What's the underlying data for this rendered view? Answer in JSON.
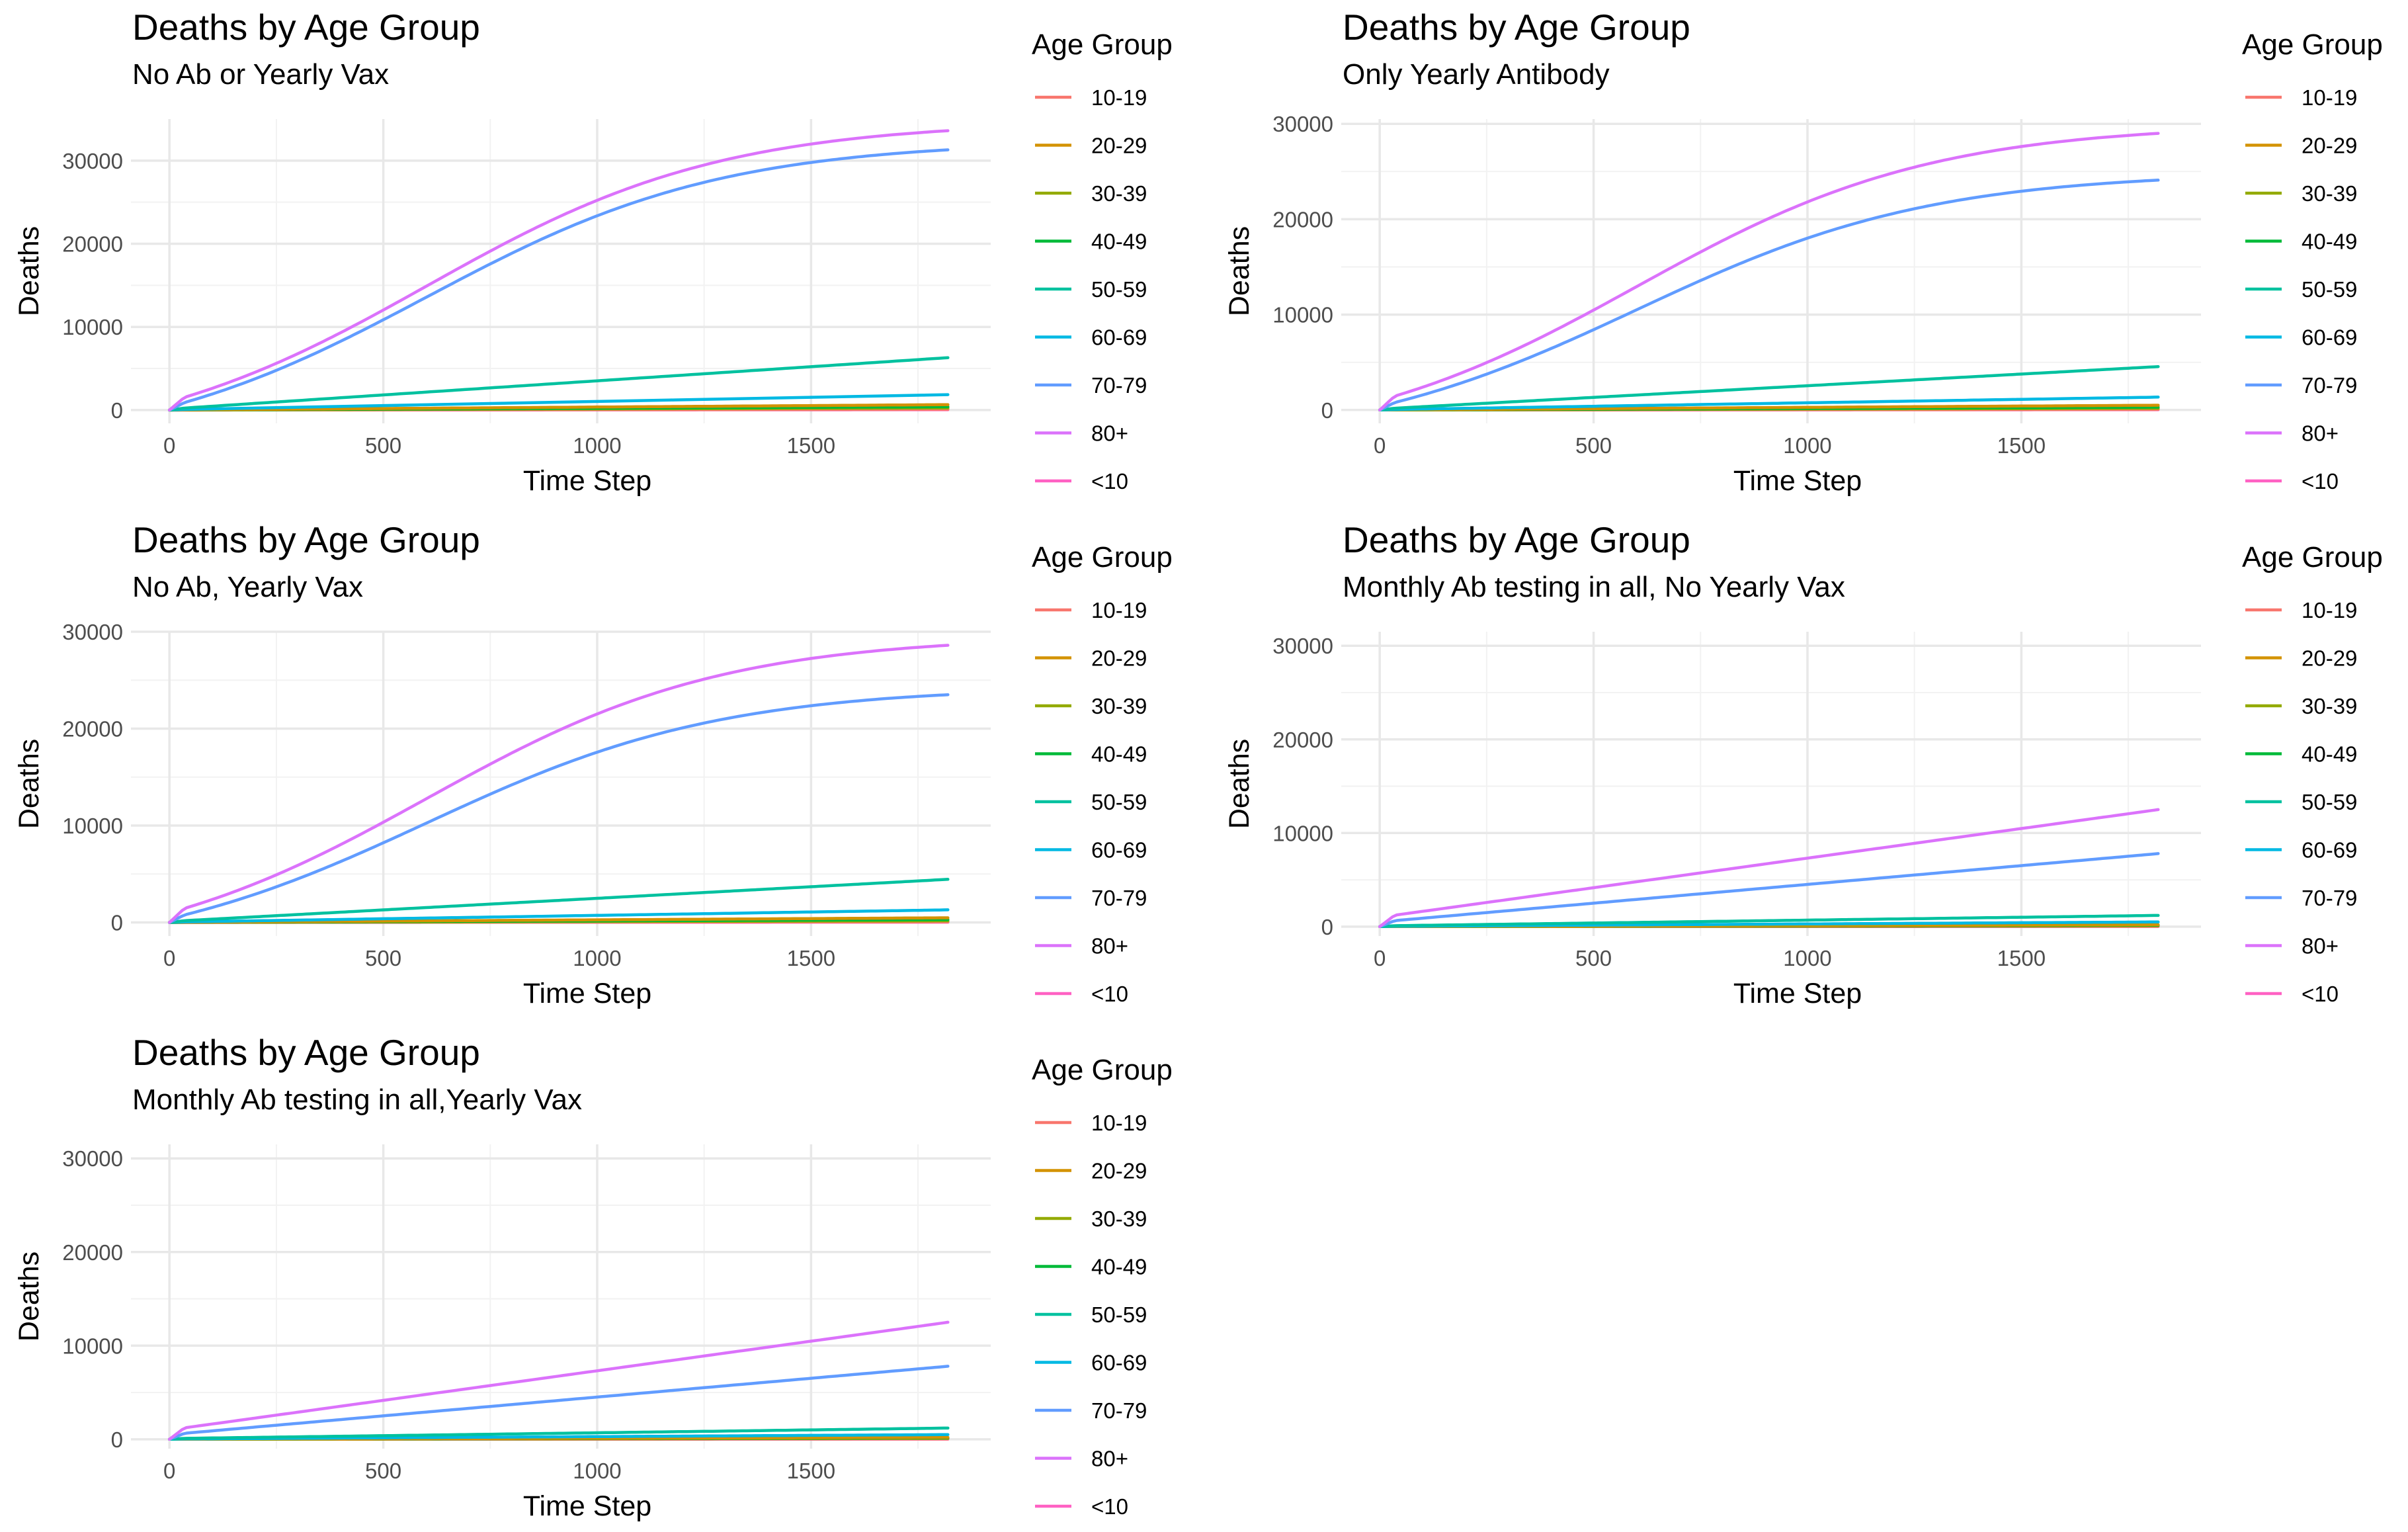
{
  "colors": {
    "10-19": "#F8766D",
    "20-29": "#D39200",
    "30-39": "#93AA00",
    "40-49": "#00BA38",
    "50-59": "#00C19F",
    "60-69": "#00B9E3",
    "70-79": "#619CFF",
    "80+": "#DB72FB",
    "<10": "#FF61C3"
  },
  "chart_data": [
    {
      "type": "line",
      "title": "Deaths by Age Group",
      "subtitle": "No Ab or Yearly Vax",
      "xlabel": "Time Step",
      "ylabel": "Deaths",
      "xlim": [
        -90,
        1920
      ],
      "ylim": [
        -1600,
        35000
      ],
      "xticks": [
        0,
        500,
        1000,
        1500
      ],
      "yticks": [
        0,
        10000,
        20000,
        30000
      ],
      "grid": true,
      "legend": {
        "title": "Age Group",
        "position": "right",
        "entries": [
          "10-19",
          "20-29",
          "30-39",
          "40-49",
          "50-59",
          "60-69",
          "70-79",
          "80+",
          "<10"
        ]
      },
      "series": [
        {
          "name": "80+",
          "shape": "s",
          "final": 33600,
          "jump": 1000
        },
        {
          "name": "70-79",
          "shape": "s",
          "final": 31300,
          "jump": 400
        },
        {
          "name": "50-59",
          "shape": "linear",
          "final": 6300,
          "jump": 120
        },
        {
          "name": "60-69",
          "shape": "linear",
          "final": 1850,
          "jump": 40
        },
        {
          "name": "20-29",
          "shape": "linear",
          "final": 650,
          "jump": 10
        },
        {
          "name": "40-49",
          "shape": "linear",
          "final": 400,
          "jump": 5
        },
        {
          "name": "30-39",
          "shape": "linear",
          "final": 250,
          "jump": 0
        },
        {
          "name": "10-19",
          "shape": "linear",
          "final": 80,
          "jump": 0
        },
        {
          "name": "<10",
          "shape": "linear",
          "final": 40,
          "jump": 0
        }
      ]
    },
    {
      "type": "line",
      "title": "Deaths by Age Group",
      "subtitle": "Only Yearly Antibody",
      "xlabel": "Time Step",
      "ylabel": "Deaths",
      "xlim": [
        -90,
        1920
      ],
      "ylim": [
        -1400,
        30500
      ],
      "xticks": [
        0,
        500,
        1000,
        1500
      ],
      "yticks": [
        0,
        10000,
        20000,
        30000
      ],
      "grid": true,
      "legend": {
        "title": "Age Group",
        "position": "right",
        "entries": [
          "10-19",
          "20-29",
          "30-39",
          "40-49",
          "50-59",
          "60-69",
          "70-79",
          "80+",
          "<10"
        ]
      },
      "series": [
        {
          "name": "80+",
          "shape": "s",
          "final": 29000,
          "jump": 1000
        },
        {
          "name": "70-79",
          "shape": "s",
          "final": 24100,
          "jump": 400
        },
        {
          "name": "50-59",
          "shape": "linear",
          "final": 4550,
          "jump": 100
        },
        {
          "name": "60-69",
          "shape": "linear",
          "final": 1350,
          "jump": 30
        },
        {
          "name": "20-29",
          "shape": "linear",
          "final": 500,
          "jump": 8
        },
        {
          "name": "40-49",
          "shape": "linear",
          "final": 300,
          "jump": 4
        },
        {
          "name": "30-39",
          "shape": "linear",
          "final": 180,
          "jump": 0
        },
        {
          "name": "10-19",
          "shape": "linear",
          "final": 60,
          "jump": 0
        },
        {
          "name": "<10",
          "shape": "linear",
          "final": 30,
          "jump": 0
        }
      ]
    },
    {
      "type": "line",
      "title": "Deaths by Age Group",
      "subtitle": "No Ab, Yearly Vax",
      "xlabel": "Time Step",
      "ylabel": "Deaths",
      "xlim": [
        -90,
        1920
      ],
      "ylim": [
        -1400,
        30000
      ],
      "xticks": [
        0,
        500,
        1000,
        1500
      ],
      "yticks": [
        0,
        10000,
        20000,
        30000
      ],
      "grid": true,
      "legend": {
        "title": "Age Group",
        "position": "right",
        "entries": [
          "10-19",
          "20-29",
          "30-39",
          "40-49",
          "50-59",
          "60-69",
          "70-79",
          "80+",
          "<10"
        ]
      },
      "series": [
        {
          "name": "80+",
          "shape": "s",
          "final": 28600,
          "jump": 1000
        },
        {
          "name": "70-79",
          "shape": "s",
          "final": 23500,
          "jump": 400
        },
        {
          "name": "50-59",
          "shape": "linear",
          "final": 4450,
          "jump": 100
        },
        {
          "name": "60-69",
          "shape": "linear",
          "final": 1300,
          "jump": 30
        },
        {
          "name": "20-29",
          "shape": "linear",
          "final": 480,
          "jump": 8
        },
        {
          "name": "40-49",
          "shape": "linear",
          "final": 290,
          "jump": 4
        },
        {
          "name": "30-39",
          "shape": "linear",
          "final": 170,
          "jump": 0
        },
        {
          "name": "10-19",
          "shape": "linear",
          "final": 60,
          "jump": 0
        },
        {
          "name": "<10",
          "shape": "linear",
          "final": 30,
          "jump": 0
        }
      ]
    },
    {
      "type": "line",
      "title": "Deaths by Age Group",
      "subtitle": "Monthly Ab testing in all, No Yearly Vax",
      "xlabel": "Time Step",
      "ylabel": "Deaths",
      "xlim": [
        -90,
        1920
      ],
      "ylim": [
        -1000,
        31500
      ],
      "xticks": [
        0,
        500,
        1000,
        1500
      ],
      "yticks": [
        0,
        10000,
        20000,
        30000
      ],
      "grid": true,
      "legend": {
        "title": "Age Group",
        "position": "right",
        "entries": [
          "10-19",
          "20-29",
          "30-39",
          "40-49",
          "50-59",
          "60-69",
          "70-79",
          "80+",
          "<10"
        ]
      },
      "series": [
        {
          "name": "80+",
          "shape": "linear",
          "final": 12500,
          "jump": 1000
        },
        {
          "name": "70-79",
          "shape": "linear",
          "final": 7800,
          "jump": 500
        },
        {
          "name": "50-59",
          "shape": "linear",
          "final": 1200,
          "jump": 80
        },
        {
          "name": "60-69",
          "shape": "linear",
          "final": 500,
          "jump": 30
        },
        {
          "name": "20-29",
          "shape": "linear",
          "final": 200,
          "jump": 5
        },
        {
          "name": "40-49",
          "shape": "linear",
          "final": 150,
          "jump": 3
        },
        {
          "name": "30-39",
          "shape": "linear",
          "final": 100,
          "jump": 0
        },
        {
          "name": "10-19",
          "shape": "linear",
          "final": 40,
          "jump": 0
        },
        {
          "name": "<10",
          "shape": "linear",
          "final": 20,
          "jump": 0
        }
      ]
    },
    {
      "type": "line",
      "title": "Deaths by Age Group",
      "subtitle": "Monthly Ab testing in all,Yearly Vax",
      "xlabel": "Time Step",
      "ylabel": "Deaths",
      "xlim": [
        -90,
        1920
      ],
      "ylim": [
        -1000,
        31500
      ],
      "xticks": [
        0,
        500,
        1000,
        1500
      ],
      "yticks": [
        0,
        10000,
        20000,
        30000
      ],
      "grid": true,
      "legend": {
        "title": "Age Group",
        "position": "right",
        "entries": [
          "10-19",
          "20-29",
          "30-39",
          "40-49",
          "50-59",
          "60-69",
          "70-79",
          "80+",
          "<10"
        ]
      },
      "series": [
        {
          "name": "80+",
          "shape": "linear",
          "final": 12500,
          "jump": 1000
        },
        {
          "name": "70-79",
          "shape": "linear",
          "final": 7800,
          "jump": 500
        },
        {
          "name": "50-59",
          "shape": "linear",
          "final": 1200,
          "jump": 80
        },
        {
          "name": "60-69",
          "shape": "linear",
          "final": 500,
          "jump": 30
        },
        {
          "name": "20-29",
          "shape": "linear",
          "final": 200,
          "jump": 5
        },
        {
          "name": "40-49",
          "shape": "linear",
          "final": 150,
          "jump": 3
        },
        {
          "name": "30-39",
          "shape": "linear",
          "final": 100,
          "jump": 0
        },
        {
          "name": "10-19",
          "shape": "linear",
          "final": 40,
          "jump": 0
        },
        {
          "name": "<10",
          "shape": "linear",
          "final": 20,
          "jump": 0
        }
      ]
    }
  ]
}
